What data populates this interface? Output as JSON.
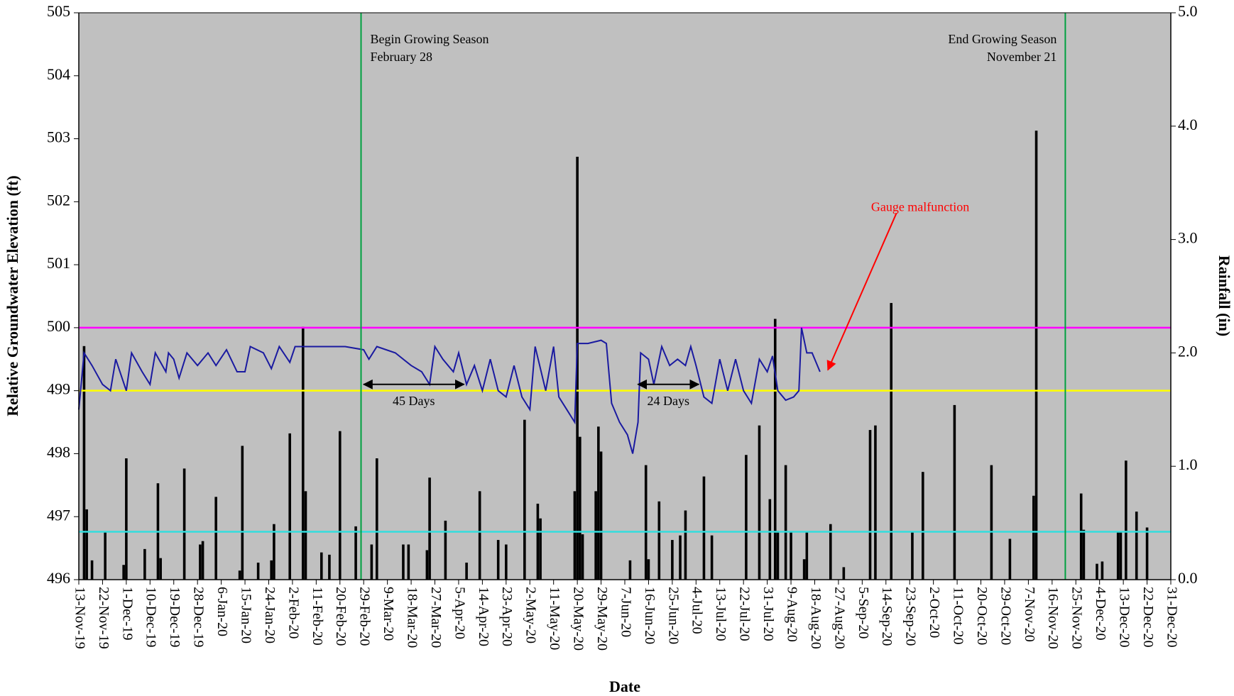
{
  "chart_data": {
    "type": "combo",
    "x_label": "Date",
    "y_label": "Relative Groundwater Elevation (ft)",
    "y2_label": "Rainfall (in)",
    "background": "#c0c0c0",
    "xlim": [
      "2019-11-13",
      "2020-12-31"
    ],
    "xticks": [
      {
        "value": "2019-11-13",
        "label": "13-Nov-19"
      },
      {
        "value": "2019-11-22",
        "label": "22-Nov-19"
      },
      {
        "value": "2019-12-01",
        "label": "1-Dec-19"
      },
      {
        "value": "2019-12-10",
        "label": "10-Dec-19"
      },
      {
        "value": "2019-12-19",
        "label": "19-Dec-19"
      },
      {
        "value": "2019-12-28",
        "label": "28-Dec-19"
      },
      {
        "value": "2020-01-06",
        "label": "6-Jan-20"
      },
      {
        "value": "2020-01-15",
        "label": "15-Jan-20"
      },
      {
        "value": "2020-01-24",
        "label": "24-Jan-20"
      },
      {
        "value": "2020-02-02",
        "label": "2-Feb-20"
      },
      {
        "value": "2020-02-11",
        "label": "11-Feb-20"
      },
      {
        "value": "2020-02-20",
        "label": "20-Feb-20"
      },
      {
        "value": "2020-02-29",
        "label": "29-Feb-20"
      },
      {
        "value": "2020-03-09",
        "label": "9-Mar-20"
      },
      {
        "value": "2020-03-18",
        "label": "18-Mar-20"
      },
      {
        "value": "2020-03-27",
        "label": "27-Mar-20"
      },
      {
        "value": "2020-04-05",
        "label": "5-Apr-20"
      },
      {
        "value": "2020-04-14",
        "label": "14-Apr-20"
      },
      {
        "value": "2020-04-23",
        "label": "23-Apr-20"
      },
      {
        "value": "2020-05-02",
        "label": "2-May-20"
      },
      {
        "value": "2020-05-11",
        "label": "11-May-20"
      },
      {
        "value": "2020-05-20",
        "label": "20-May-20"
      },
      {
        "value": "2020-05-29",
        "label": "29-May-20"
      },
      {
        "value": "2020-06-07",
        "label": "7-Jun-20"
      },
      {
        "value": "2020-06-16",
        "label": "16-Jun-20"
      },
      {
        "value": "2020-06-25",
        "label": "25-Jun-20"
      },
      {
        "value": "2020-07-04",
        "label": "4-Jul-20"
      },
      {
        "value": "2020-07-13",
        "label": "13-Jul-20"
      },
      {
        "value": "2020-07-22",
        "label": "22-Jul-20"
      },
      {
        "value": "2020-07-31",
        "label": "31-Jul-20"
      },
      {
        "value": "2020-08-09",
        "label": "9-Aug-20"
      },
      {
        "value": "2020-08-18",
        "label": "18-Aug-20"
      },
      {
        "value": "2020-08-27",
        "label": "27-Aug-20"
      },
      {
        "value": "2020-09-05",
        "label": "5-Sep-20"
      },
      {
        "value": "2020-09-14",
        "label": "14-Sep-20"
      },
      {
        "value": "2020-09-23",
        "label": "23-Sep-20"
      },
      {
        "value": "2020-10-02",
        "label": "2-Oct-20"
      },
      {
        "value": "2020-10-11",
        "label": "11-Oct-20"
      },
      {
        "value": "2020-10-20",
        "label": "20-Oct-20"
      },
      {
        "value": "2020-10-29",
        "label": "29-Oct-20"
      },
      {
        "value": "2020-11-07",
        "label": "7-Nov-20"
      },
      {
        "value": "2020-11-16",
        "label": "16-Nov-20"
      },
      {
        "value": "2020-11-25",
        "label": "25-Nov-20"
      },
      {
        "value": "2020-12-04",
        "label": "4-Dec-20"
      },
      {
        "value": "2020-12-13",
        "label": "13-Dec-20"
      },
      {
        "value": "2020-12-22",
        "label": "22-Dec-20"
      },
      {
        "value": "2020-12-31",
        "label": "31-Dec-20"
      }
    ],
    "ylim": [
      496,
      505
    ],
    "yticks": [
      496,
      497,
      498,
      499,
      500,
      501,
      502,
      503,
      504,
      505
    ],
    "y2lim": [
      0,
      5
    ],
    "y2ticks": [
      {
        "value": 0,
        "label": "0.0"
      },
      {
        "value": 1,
        "label": "1.0"
      },
      {
        "value": 2,
        "label": "2.0"
      },
      {
        "value": 3,
        "label": "3.0"
      },
      {
        "value": 4,
        "label": "4.0"
      },
      {
        "value": 5,
        "label": "5.0"
      }
    ],
    "hlines": [
      {
        "value": 500,
        "color": "#ff00ff"
      },
      {
        "value": 499,
        "color": "#ffff00"
      },
      {
        "value": 496.76,
        "color": "#33dddd"
      }
    ],
    "vlines": [
      {
        "x": "2020-02-28",
        "color": "#00a040",
        "label": [
          "Begin Growing Season",
          "February 28"
        ],
        "anchor": "start"
      },
      {
        "x": "2020-11-21",
        "color": "#00a040",
        "label": [
          "End Growing Season",
          "November 21"
        ],
        "anchor": "end"
      }
    ],
    "spans": [
      {
        "label": "45 Days",
        "from": "2020-02-29",
        "to": "2020-04-07",
        "y": 499.1
      },
      {
        "label": "24 Days",
        "from": "2020-06-12",
        "to": "2020-07-05",
        "y": 499.1
      }
    ],
    "annotations": [
      {
        "text": "Gauge malfunction",
        "color": "#ff0000",
        "x": "2020-09-27",
        "y": 501.9,
        "arrow_from": {
          "x": "2020-09-18",
          "y": 501.82
        },
        "arrow_to": {
          "x": "2020-08-23",
          "y": 499.33
        }
      }
    ],
    "series": [
      {
        "type": "bar",
        "axis": "y2",
        "color": "#000000",
        "x": [
          "2019-11-15",
          "2019-11-16",
          "2019-11-18",
          "2019-11-23",
          "2019-11-30",
          "2019-12-01",
          "2019-12-08",
          "2019-12-13",
          "2019-12-14",
          "2019-12-23",
          "2019-12-29",
          "2019-12-30",
          "2020-01-04",
          "2020-01-13",
          "2020-01-14",
          "2020-01-20",
          "2020-01-25",
          "2020-01-26",
          "2020-02-01",
          "2020-02-06",
          "2020-02-07",
          "2020-02-13",
          "2020-02-16",
          "2020-02-20",
          "2020-02-26",
          "2020-03-03",
          "2020-03-05",
          "2020-03-15",
          "2020-03-17",
          "2020-03-24",
          "2020-03-25",
          "2020-03-31",
          "2020-04-08",
          "2020-04-13",
          "2020-04-20",
          "2020-04-23",
          "2020-04-30",
          "2020-05-05",
          "2020-05-06",
          "2020-05-19",
          "2020-05-20",
          "2020-05-21",
          "2020-05-22",
          "2020-05-27",
          "2020-05-28",
          "2020-05-29",
          "2020-06-09",
          "2020-06-15",
          "2020-06-16",
          "2020-06-20",
          "2020-06-25",
          "2020-06-28",
          "2020-06-30",
          "2020-07-07",
          "2020-07-10",
          "2020-07-23",
          "2020-07-28",
          "2020-08-01",
          "2020-08-03",
          "2020-08-04",
          "2020-08-07",
          "2020-08-09",
          "2020-08-14",
          "2020-08-15",
          "2020-08-24",
          "2020-08-29",
          "2020-09-08",
          "2020-09-10",
          "2020-09-16",
          "2020-09-24",
          "2020-09-28",
          "2020-10-10",
          "2020-10-24",
          "2020-10-31",
          "2020-11-09",
          "2020-11-10",
          "2020-11-27",
          "2020-11-28",
          "2020-12-03",
          "2020-12-05",
          "2020-12-11",
          "2020-12-12",
          "2020-12-14",
          "2020-12-18",
          "2020-12-22"
        ],
        "values": [
          2.06,
          0.62,
          0.17,
          0.42,
          0.13,
          1.07,
          0.27,
          0.85,
          0.19,
          0.98,
          0.31,
          0.34,
          0.73,
          0.08,
          1.18,
          0.15,
          0.17,
          0.49,
          1.29,
          2.23,
          0.78,
          0.24,
          0.22,
          1.31,
          0.47,
          0.31,
          1.07,
          0.31,
          0.31,
          0.26,
          0.9,
          0.52,
          0.15,
          0.78,
          0.35,
          0.31,
          1.41,
          0.67,
          0.54,
          0.78,
          3.73,
          1.26,
          0.4,
          0.78,
          1.35,
          1.13,
          0.17,
          1.01,
          0.18,
          0.69,
          0.35,
          0.39,
          0.61,
          0.91,
          0.39,
          1.1,
          1.36,
          0.71,
          2.3,
          0.43,
          1.01,
          0.42,
          0.18,
          0.42,
          0.49,
          0.11,
          1.32,
          1.36,
          2.44,
          0.42,
          0.95,
          1.54,
          1.01,
          0.36,
          0.74,
          3.96,
          0.76,
          0.44,
          0.14,
          0.16,
          0.42,
          0.42,
          1.05,
          0.6,
          0.46
        ]
      },
      {
        "type": "line",
        "color": "#1a1aa0",
        "x": [
          "2019-11-13",
          "2019-11-15",
          "2019-11-18",
          "2019-11-22",
          "2019-11-25",
          "2019-11-27",
          "2019-12-01",
          "2019-12-03",
          "2019-12-07",
          "2019-12-10",
          "2019-12-12",
          "2019-12-16",
          "2019-12-17",
          "2019-12-19",
          "2019-12-21",
          "2019-12-24",
          "2019-12-28",
          "2020-01-01",
          "2020-01-04",
          "2020-01-08",
          "2020-01-12",
          "2020-01-15",
          "2020-01-17",
          "2020-01-22",
          "2020-01-25",
          "2020-01-28",
          "2020-02-01",
          "2020-02-03",
          "2020-02-09",
          "2020-02-15",
          "2020-02-22",
          "2020-02-29",
          "2020-03-02",
          "2020-03-05",
          "2020-03-12",
          "2020-03-18",
          "2020-03-22",
          "2020-03-25",
          "2020-03-27",
          "2020-03-30",
          "2020-04-03",
          "2020-04-05",
          "2020-04-08",
          "2020-04-11",
          "2020-04-14",
          "2020-04-17",
          "2020-04-20",
          "2020-04-23",
          "2020-04-26",
          "2020-04-29",
          "2020-05-02",
          "2020-05-04",
          "2020-05-08",
          "2020-05-11",
          "2020-05-13",
          "2020-05-16",
          "2020-05-19",
          "2020-05-20",
          "2020-05-24",
          "2020-05-29",
          "2020-05-31",
          "2020-06-02",
          "2020-06-05",
          "2020-06-08",
          "2020-06-10",
          "2020-06-12",
          "2020-06-13",
          "2020-06-16",
          "2020-06-18",
          "2020-06-21",
          "2020-06-24",
          "2020-06-27",
          "2020-06-30",
          "2020-07-02",
          "2020-07-04",
          "2020-07-07",
          "2020-07-10",
          "2020-07-13",
          "2020-07-16",
          "2020-07-19",
          "2020-07-22",
          "2020-07-25",
          "2020-07-28",
          "2020-07-31",
          "2020-08-02",
          "2020-08-04",
          "2020-08-07",
          "2020-08-10",
          "2020-08-12",
          "2020-08-13",
          "2020-08-15",
          "2020-08-17",
          "2020-08-20"
        ],
        "values": [
          498.7,
          499.6,
          499.4,
          499.1,
          499.0,
          499.5,
          499.0,
          499.6,
          499.3,
          499.1,
          499.6,
          499.3,
          499.6,
          499.5,
          499.2,
          499.6,
          499.4,
          499.6,
          499.4,
          499.65,
          499.3,
          499.3,
          499.7,
          499.6,
          499.35,
          499.7,
          499.45,
          499.7,
          499.7,
          499.7,
          499.7,
          499.65,
          499.5,
          499.7,
          499.6,
          499.4,
          499.3,
          499.1,
          499.7,
          499.5,
          499.3,
          499.6,
          499.1,
          499.4,
          499.0,
          499.5,
          499.0,
          498.9,
          499.4,
          498.9,
          498.7,
          499.7,
          499.0,
          499.7,
          498.9,
          498.7,
          498.5,
          499.75,
          499.75,
          499.8,
          499.75,
          498.8,
          498.5,
          498.3,
          498.0,
          498.5,
          499.6,
          499.5,
          499.1,
          499.7,
          499.4,
          499.5,
          499.4,
          499.7,
          499.4,
          498.9,
          498.8,
          499.5,
          499.0,
          499.5,
          499.0,
          498.8,
          499.5,
          499.3,
          499.55,
          499.0,
          498.85,
          498.9,
          499.0,
          500.0,
          499.6,
          499.6,
          499.3
        ]
      }
    ]
  }
}
